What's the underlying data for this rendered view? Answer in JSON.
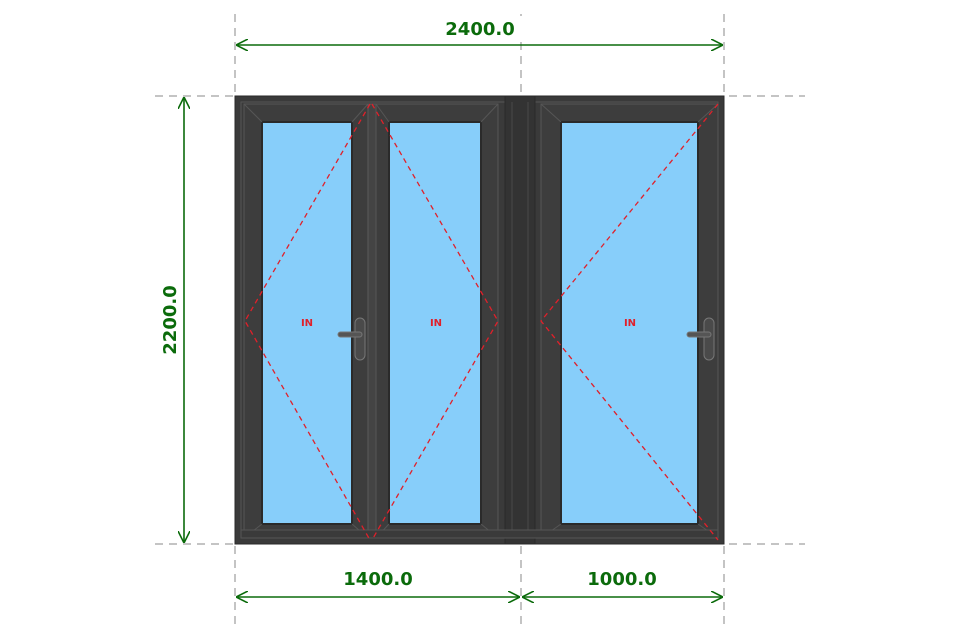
{
  "dimensions": {
    "total_width": "2400.0",
    "height": "2200.0",
    "left_section_width": "1400.0",
    "right_section_width": "1000.0"
  },
  "sashes": [
    {
      "label": "IN",
      "opening": "tilt-turn-left-hinge"
    },
    {
      "label": "IN",
      "opening": "turn-right-hinge"
    },
    {
      "label": "IN",
      "opening": "turn-right-hinge"
    }
  ],
  "colors": {
    "dimension_line": "#0b6b0b",
    "frame": "#3a3a3a",
    "glass": "#87cefa",
    "opening_marker": "#e0202a",
    "guide_line": "#888888"
  }
}
